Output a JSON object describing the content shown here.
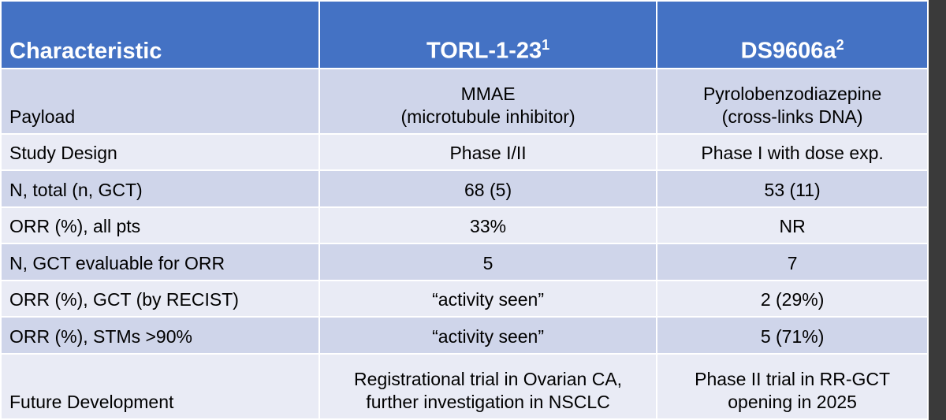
{
  "table": {
    "header": [
      {
        "text": "Characteristic"
      },
      {
        "text": "TORL-1-23",
        "sup": "1"
      },
      {
        "text": "DS9606a",
        "sup": "2"
      }
    ],
    "rows": [
      [
        [
          "Payload"
        ],
        [
          "MMAE",
          "(microtubule inhibitor)"
        ],
        [
          "Pyrolobenzodiazepine",
          "(cross-links DNA)"
        ]
      ],
      [
        [
          "Study Design"
        ],
        [
          "Phase I/II"
        ],
        [
          "Phase I with dose exp."
        ]
      ],
      [
        [
          "N, total (n, GCT)"
        ],
        [
          "68 (5)"
        ],
        [
          "53 (11)"
        ]
      ],
      [
        [
          "ORR (%), all pts"
        ],
        [
          "33%"
        ],
        [
          "NR"
        ]
      ],
      [
        [
          "N, GCT evaluable for ORR"
        ],
        [
          "5"
        ],
        [
          "7"
        ]
      ],
      [
        [
          "ORR (%), GCT (by RECIST)"
        ],
        [
          "“activity seen”"
        ],
        [
          "2 (29%)"
        ]
      ],
      [
        [
          "ORR (%), STMs >90%"
        ],
        [
          "“activity seen”"
        ],
        [
          "5 (71%)"
        ]
      ],
      [
        [
          "Future Development"
        ],
        [
          "Registrational trial in Ovarian CA,",
          "further investigation in NSCLC"
        ],
        [
          "Phase II trial in RR-GCT",
          "opening in 2025"
        ]
      ]
    ]
  }
}
